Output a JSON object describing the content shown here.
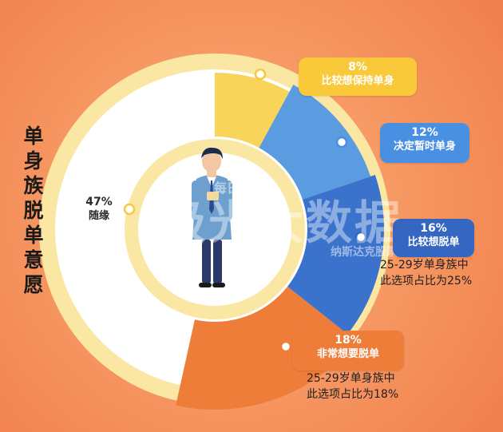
{
  "title": "单身族脱单意愿",
  "colors": {
    "background": "#f2824b",
    "ring_outer": "#fbe7a4",
    "ring_inner": "#fbe7a4",
    "gap": "#ffffff",
    "slice_8": "#f9d45a",
    "slice_12": "#5b9be0",
    "slice_16": "#3a72cc",
    "slice_18": "#ef7d3a",
    "pill_8": "#f9c93a",
    "pill_12": "#4a90e2",
    "pill_16": "#3466c2",
    "pill_18": "#ef7d3a"
  },
  "chart_data": {
    "type": "pie",
    "title": "单身族脱单意愿",
    "slices": [
      {
        "label": "随缘",
        "value": 47,
        "display": "47%"
      },
      {
        "label": "比较想保持单身",
        "value": 8,
        "display": "8%"
      },
      {
        "label": "决定暂时单身",
        "value": 12,
        "display": "12%"
      },
      {
        "label": "比较想脱单",
        "value": 16,
        "display": "16%",
        "note": [
          "25-29岁单身族中",
          "此选项占比为25%"
        ]
      },
      {
        "label": "非常想要脱单",
        "value": 18,
        "display": "18%",
        "note": [
          "25-29岁单身族中",
          "此选项占比为18%"
        ]
      }
    ]
  },
  "watermark": {
    "main": "极光大数据",
    "sub": "纳斯达克股票代码: JG",
    "small1": "每日"
  }
}
